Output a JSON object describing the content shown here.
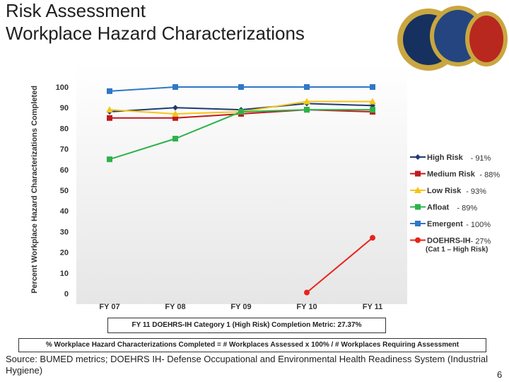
{
  "header": {
    "title_line1": "Risk Assessment",
    "title_line2": "Workplace Hazard Characterizations"
  },
  "logos": [
    "navy-seal-icon",
    "navy-marine-corps-seal-icon",
    "marine-corps-seal-icon"
  ],
  "chart_data": {
    "type": "line",
    "title": "",
    "xlabel": "",
    "ylabel": "Percent Workplace Hazard Characterizations Completed",
    "x": [
      "FY 07",
      "FY 08",
      "FY 09",
      "FY 10",
      "FY 11"
    ],
    "ylim": [
      0,
      100
    ],
    "yticks": [
      0,
      10,
      20,
      30,
      40,
      50,
      60,
      70,
      80,
      90,
      100
    ],
    "grid": false,
    "legend_position": "right",
    "series": [
      {
        "name": "High Risk",
        "legend_value": "- 91%",
        "color": "#1f3b73",
        "marker": "diamond",
        "values": [
          88,
          90,
          89,
          92,
          91
        ]
      },
      {
        "name": "Medium Risk",
        "legend_value": "- 88%",
        "color": "#c0191e",
        "marker": "square",
        "values": [
          85,
          85,
          87,
          89,
          88
        ]
      },
      {
        "name": "Low Risk",
        "legend_value": "- 93%",
        "color": "#f5c518",
        "marker": "triangle",
        "values": [
          89,
          87,
          88,
          93,
          93
        ]
      },
      {
        "name": "Afloat",
        "legend_value": "- 89%",
        "color": "#2db24a",
        "marker": "square",
        "values": [
          65,
          75,
          88,
          89,
          89
        ]
      },
      {
        "name": "Emergent",
        "legend_value": "- 100%",
        "color": "#2f77c8",
        "marker": "square",
        "values": [
          98,
          100,
          100,
          100,
          100
        ]
      },
      {
        "name": "DOEHRS-IH",
        "legend_value": "- 27%",
        "legend_sub": "(Cat 1 – High Risk)",
        "color": "#e8231c",
        "marker": "circle",
        "values": [
          null,
          null,
          null,
          0.5,
          27
        ]
      }
    ]
  },
  "notes": {
    "completion_metric": "FY 11 DOEHRS-IH Category 1 (High Risk) Completion Metric:  27.37%",
    "formula": "% Workplace Hazard Characterizations Completed = # Workplaces Assessed x 100% / # Workplaces Requiring Assessment"
  },
  "footer": {
    "source": "Source: BUMED metrics; DOEHRS IH- Defense Occupational and Environmental Health Readiness System (Industrial Hygiene)",
    "page_number": "6"
  }
}
